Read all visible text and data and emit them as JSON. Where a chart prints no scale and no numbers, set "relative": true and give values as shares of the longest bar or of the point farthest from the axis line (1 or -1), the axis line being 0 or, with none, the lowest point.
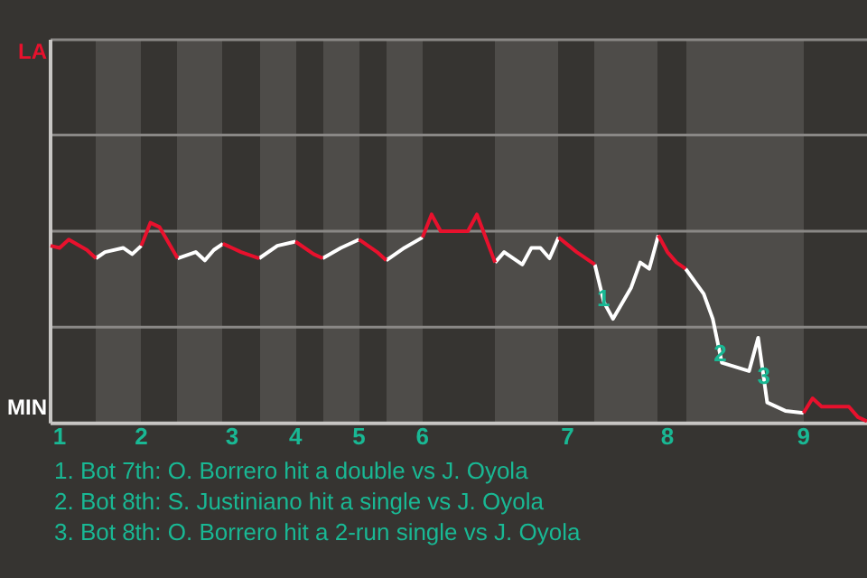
{
  "chart_data": {
    "type": "line",
    "relative": true,
    "marker": "none",
    "line_style": "solid",
    "categories": [
      null,
      "1",
      null,
      null,
      null,
      null,
      null,
      null,
      null,
      null,
      "2",
      null,
      null,
      null,
      null,
      null,
      null,
      null,
      null,
      null,
      "3",
      null,
      null,
      null,
      null,
      null,
      null,
      "4",
      null,
      null,
      null,
      null,
      null,
      null,
      "5",
      null,
      null,
      null,
      null,
      null,
      null,
      "6",
      null,
      null,
      null,
      null,
      null,
      null,
      null,
      null,
      null,
      null,
      null,
      null,
      null,
      null,
      null,
      "7",
      null,
      null,
      null,
      null,
      null,
      null,
      null,
      null,
      null,
      null,
      "8",
      null,
      null,
      null,
      null,
      null,
      null,
      null,
      null,
      null,
      null,
      null,
      null,
      null,
      null,
      "9",
      null,
      null,
      null,
      null,
      null,
      null,
      null
    ],
    "series": [
      {
        "color": "#e8112d",
        "values": [
          0.85,
          0.84,
          0.88,
          null,
          0.83,
          0.79,
          null,
          null,
          null,
          null,
          0.85,
          0.96,
          0.94,
          null,
          0.79,
          null,
          null,
          null,
          null,
          0.86,
          null,
          0.82,
          null,
          0.79,
          null,
          null,
          null,
          0.87,
          null,
          0.81,
          0.79,
          null,
          null,
          null,
          0.88,
          null,
          0.82,
          0.78,
          null,
          null,
          null,
          0.89,
          1,
          0.92,
          null,
          null,
          0.92,
          1,
          null,
          0.77,
          null,
          null,
          null,
          null,
          null,
          null,
          0.89,
          null,
          0.82,
          null,
          0.76,
          null,
          null,
          null,
          null,
          null,
          null,
          0.9,
          0.82,
          0.77,
          0.74,
          null,
          null,
          null,
          null,
          null,
          null,
          null,
          null,
          null,
          null,
          null,
          null,
          0.05,
          0.12,
          0.08,
          null,
          null,
          0.08,
          0.03,
          0.01
        ]
      },
      {
        "color": "#ffffff",
        "values": [
          null,
          null,
          null,
          null,
          null,
          0.79,
          0.82,
          null,
          0.84,
          0.81,
          0.85,
          null,
          null,
          null,
          0.79,
          null,
          0.82,
          0.78,
          0.83,
          0.86,
          null,
          null,
          null,
          0.79,
          null,
          0.85,
          null,
          0.87,
          null,
          null,
          0.79,
          null,
          0.84,
          null,
          0.88,
          null,
          null,
          0.78,
          null,
          0.84,
          null,
          0.89,
          null,
          null,
          null,
          null,
          null,
          null,
          null,
          0.77,
          0.82,
          null,
          0.76,
          0.84,
          0.84,
          0.79,
          0.89,
          null,
          null,
          null,
          0.76,
          0.58,
          0.5,
          null,
          0.65,
          0.77,
          0.74,
          0.9,
          null,
          null,
          0.74,
          null,
          0.62,
          0.5,
          0.29,
          null,
          null,
          0.25,
          0.41,
          0.1,
          null,
          0.06,
          null,
          0.05,
          null,
          null,
          null,
          null,
          null,
          null,
          null
        ]
      }
    ],
    "ref_lines": [
      {
        "axis": "y",
        "value": 0.46,
        "color": "#8a8886"
      },
      {
        "axis": "y",
        "value": 0.92,
        "color": "#8a8886"
      },
      {
        "axis": "y",
        "value": 1.38,
        "color": "#8a8886"
      }
    ],
    "annotations": [
      "LA",
      "MIN",
      {
        "text": "1",
        "y": 0.59
      },
      {
        "text": "2",
        "y": 0.33
      },
      {
        "text": "3",
        "y": 0.22
      },
      "1. Bot 7th: O. Borrero hit a double vs J. Oyola",
      "2. Bot 8th: S. Justiniano hit a single vs J. Oyola",
      "3. Bot 8th: O. Borrero hit a 2-run single vs J. Oyola"
    ]
  }
}
